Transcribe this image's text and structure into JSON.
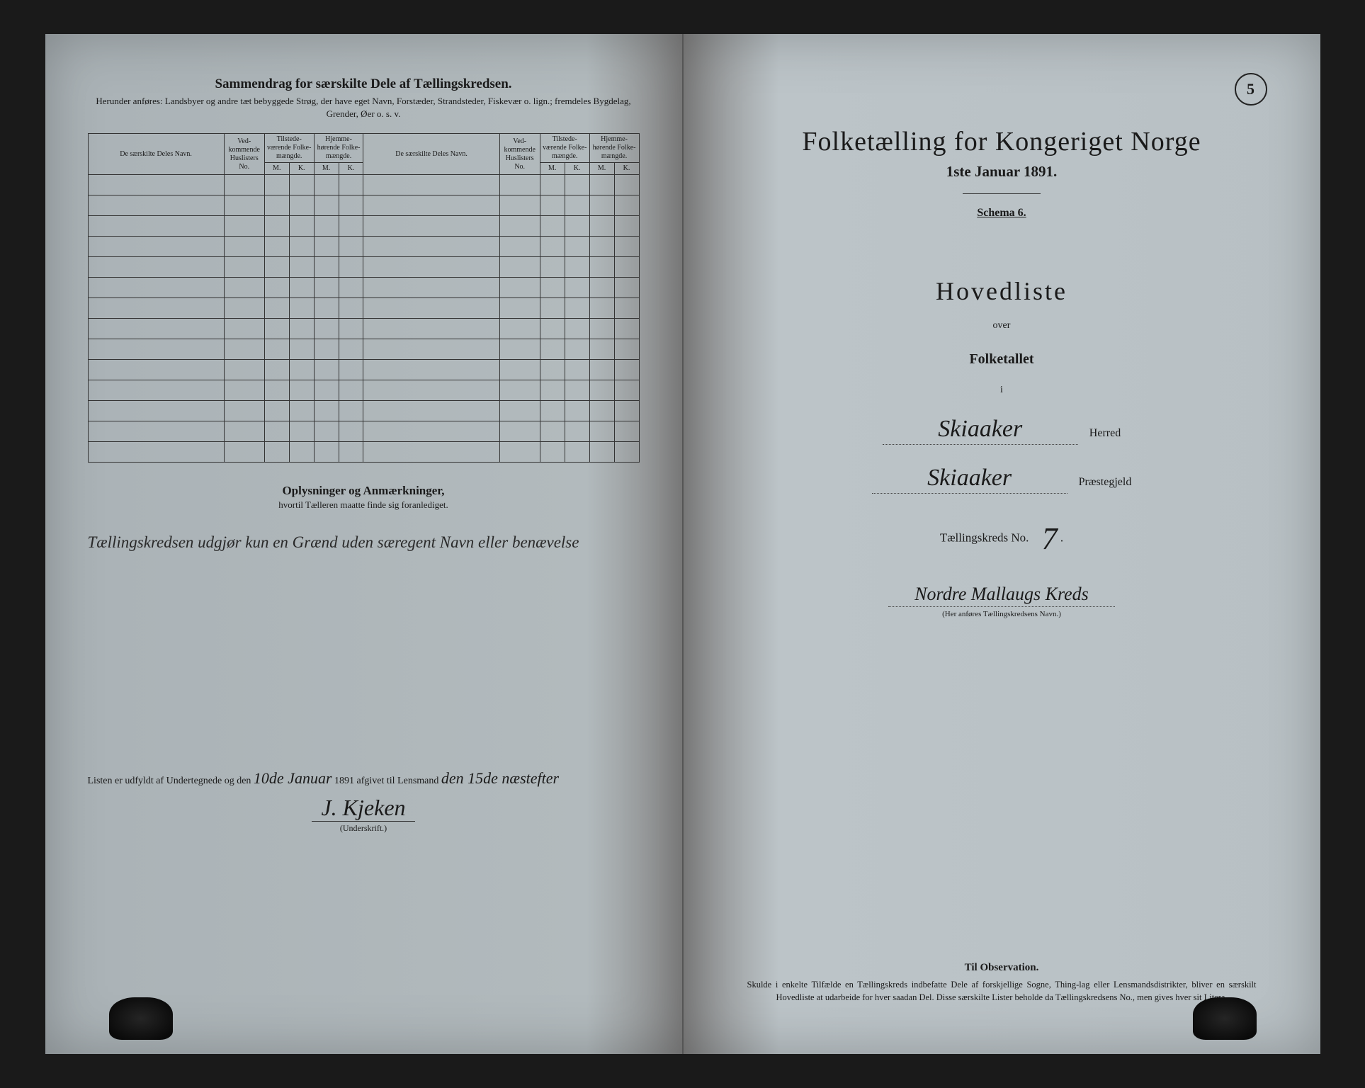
{
  "left": {
    "title": "Sammendrag for særskilte Dele af Tællingskredsen.",
    "subtitle": "Herunder anføres: Landsbyer og andre tæt bebyggede Strøg, der have eget Navn, Forstæder, Strandsteder, Fiskevær o. lign.; fremdeles Bygdelag, Grender, Øer o. s. v.",
    "table": {
      "headers": {
        "navn": "De særskilte Deles Navn.",
        "huslister": "Ved-kommende Huslisters No.",
        "tilstede": "Tilstede-værende Folke-mængde.",
        "hjemme": "Hjemme-hørende Folke-mængde.",
        "m": "M.",
        "k": "K."
      },
      "rows": 14
    },
    "notes_title": "Oplysninger og Anmærkninger,",
    "notes_sub": "hvortil Tælleren maatte finde sig foranlediget.",
    "notes_hand": "Tællingskredsen udgjør kun en Grænd uden særegent Navn eller benævelse",
    "bottom": {
      "pre": "Listen er udfyldt af Undertegnede og den",
      "date": "10de Januar",
      "year": "1891 afgivet til Lensmand",
      "received": "den 15de næstefter",
      "signature": "J. Kjeken",
      "sig_label": "(Underskrift.)"
    }
  },
  "right": {
    "stamp": "5",
    "main_title": "Folketælling for Kongeriget Norge",
    "date_line": "1ste Januar 1891.",
    "schema": "Schema 6.",
    "hovedliste": "Hovedliste",
    "over": "over",
    "folketallet": "Folketallet",
    "i": "i",
    "herred_value": "Skiaaker",
    "herred_label": "Herred",
    "praeste_value": "Skiaaker",
    "praeste_label": "Præstegjeld",
    "tk_label": "Tællingskreds No.",
    "tk_no": "7",
    "kreds_name": "Nordre Mallaugs Kreds",
    "kreds_sub": "(Her anføres Tællingskredsens Navn.)",
    "obs_title": "Til Observation.",
    "obs_text": "Skulde i enkelte Tilfælde en Tællingskreds indbefatte Dele af forskjellige Sogne, Thing-lag eller Lensmandsdistrikter, bliver en særskilt Hovedliste at udarbeide for hver saadan Del. Disse særskilte Lister beholde da Tællingskredsens No., men gives hver sit Litera."
  },
  "colors": {
    "paper": "#b4bcc0",
    "ink": "#1a1a1a",
    "background": "#1a1a1a"
  }
}
